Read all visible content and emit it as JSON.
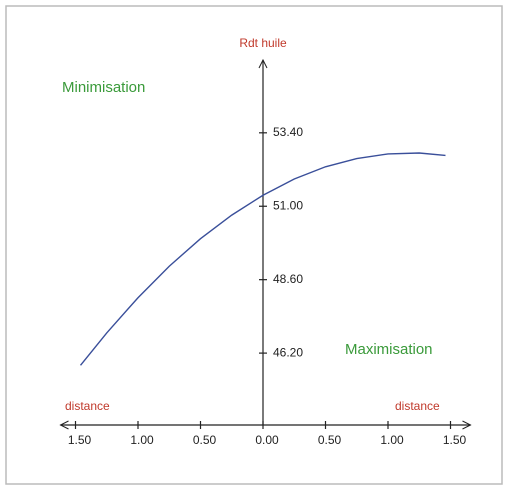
{
  "chart_data": {
    "type": "line",
    "y_label": "Rdt huile",
    "annotations": [
      "Minimisation",
      "Maximisation",
      "distance",
      "distance"
    ],
    "x": [
      -1.46,
      -1.25,
      -1,
      -0.75,
      -0.5,
      -0.25,
      0,
      0.25,
      0.5,
      0.75,
      1,
      1.25,
      1.46
    ],
    "series": [
      {
        "color": "#3a4f9a",
        "values": [
          45.8,
          46.86,
          48.01,
          49.04,
          49.94,
          50.71,
          51.36,
          51.89,
          52.29,
          52.56,
          52.71,
          52.74,
          52.66
        ]
      }
    ],
    "xlim": [
      -1.62,
      1.66
    ],
    "xticks": [
      {
        "value": -1.5,
        "label": "1.50"
      },
      {
        "value": -1,
        "label": "1.00"
      },
      {
        "value": -0.5,
        "label": "0.50"
      },
      {
        "value": 0,
        "label": "0.00"
      },
      {
        "value": 0.5,
        "label": "0.50"
      },
      {
        "value": 1,
        "label": "1.00"
      },
      {
        "value": 1.5,
        "label": "1.50"
      }
    ],
    "ylim": [
      43.85,
      55.78
    ],
    "yticks": [
      {
        "value": 46.2,
        "label": "46.20"
      },
      {
        "value": 48.6,
        "label": "48.60"
      },
      {
        "value": 51,
        "label": "51.00"
      },
      {
        "value": 53.4,
        "label": "53.40"
      }
    ],
    "grid": false
  }
}
